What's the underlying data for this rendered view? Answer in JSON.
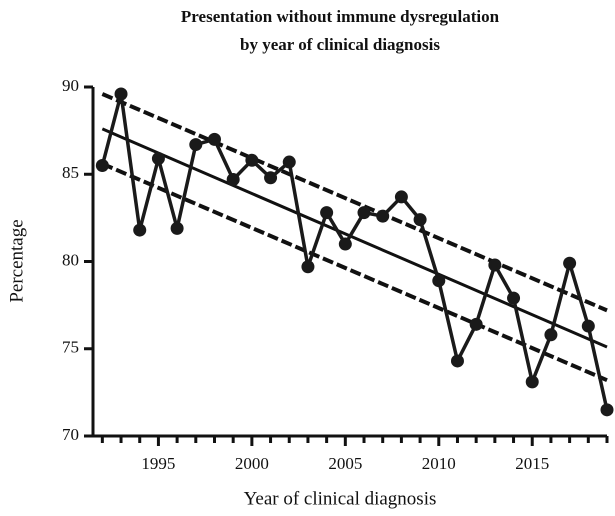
{
  "chart_data": {
    "type": "line",
    "title": [
      "Presentation without immune dysregulation",
      "by year of clinical diagnosis"
    ],
    "x_label": "Year of clinical diagnosis",
    "y_label": "Percentage",
    "x": [
      1992,
      1993,
      1994,
      1995,
      1996,
      1997,
      1998,
      1999,
      2000,
      2001,
      2002,
      2003,
      2004,
      2005,
      2006,
      2007,
      2008,
      2009,
      2010,
      2011,
      2012,
      2013,
      2014,
      2015,
      2016,
      2017,
      2018,
      2019
    ],
    "series": [
      {
        "color": "#1a1a1a",
        "values": [
          85.5,
          89.6,
          81.8,
          85.9,
          81.9,
          86.7,
          87.0,
          84.7,
          85.8,
          84.8,
          85.7,
          79.7,
          82.8,
          81.0,
          82.8,
          82.6,
          83.7,
          82.4,
          78.9,
          74.3,
          76.4,
          79.8,
          77.9,
          73.1,
          75.8,
          79.9,
          76.3,
          71.5
        ]
      }
    ],
    "fit_lines": [
      {
        "x": [
          1992,
          2019
        ],
        "values": [
          87.6,
          75.1
        ],
        "dashed": false
      },
      {
        "x": [
          1992,
          2019
        ],
        "values": [
          89.6,
          77.2
        ],
        "dashed": true
      },
      {
        "x": [
          1992,
          2019
        ],
        "values": [
          85.6,
          73.2
        ],
        "dashed": true
      }
    ],
    "xlim": [
      1991.5,
      2019
    ],
    "ylim": [
      70,
      90
    ],
    "xticks": [
      1995,
      2000,
      2005,
      2010,
      2015
    ],
    "xminor_ticks": [
      1992,
      1993,
      1994,
      1996,
      1997,
      1998,
      1999,
      2001,
      2002,
      2003,
      2004,
      2006,
      2007,
      2008,
      2009,
      2011,
      2012,
      2013,
      2014,
      2016,
      2017,
      2018,
      2019
    ],
    "yticks": [
      70,
      75,
      80,
      85,
      90
    ]
  }
}
